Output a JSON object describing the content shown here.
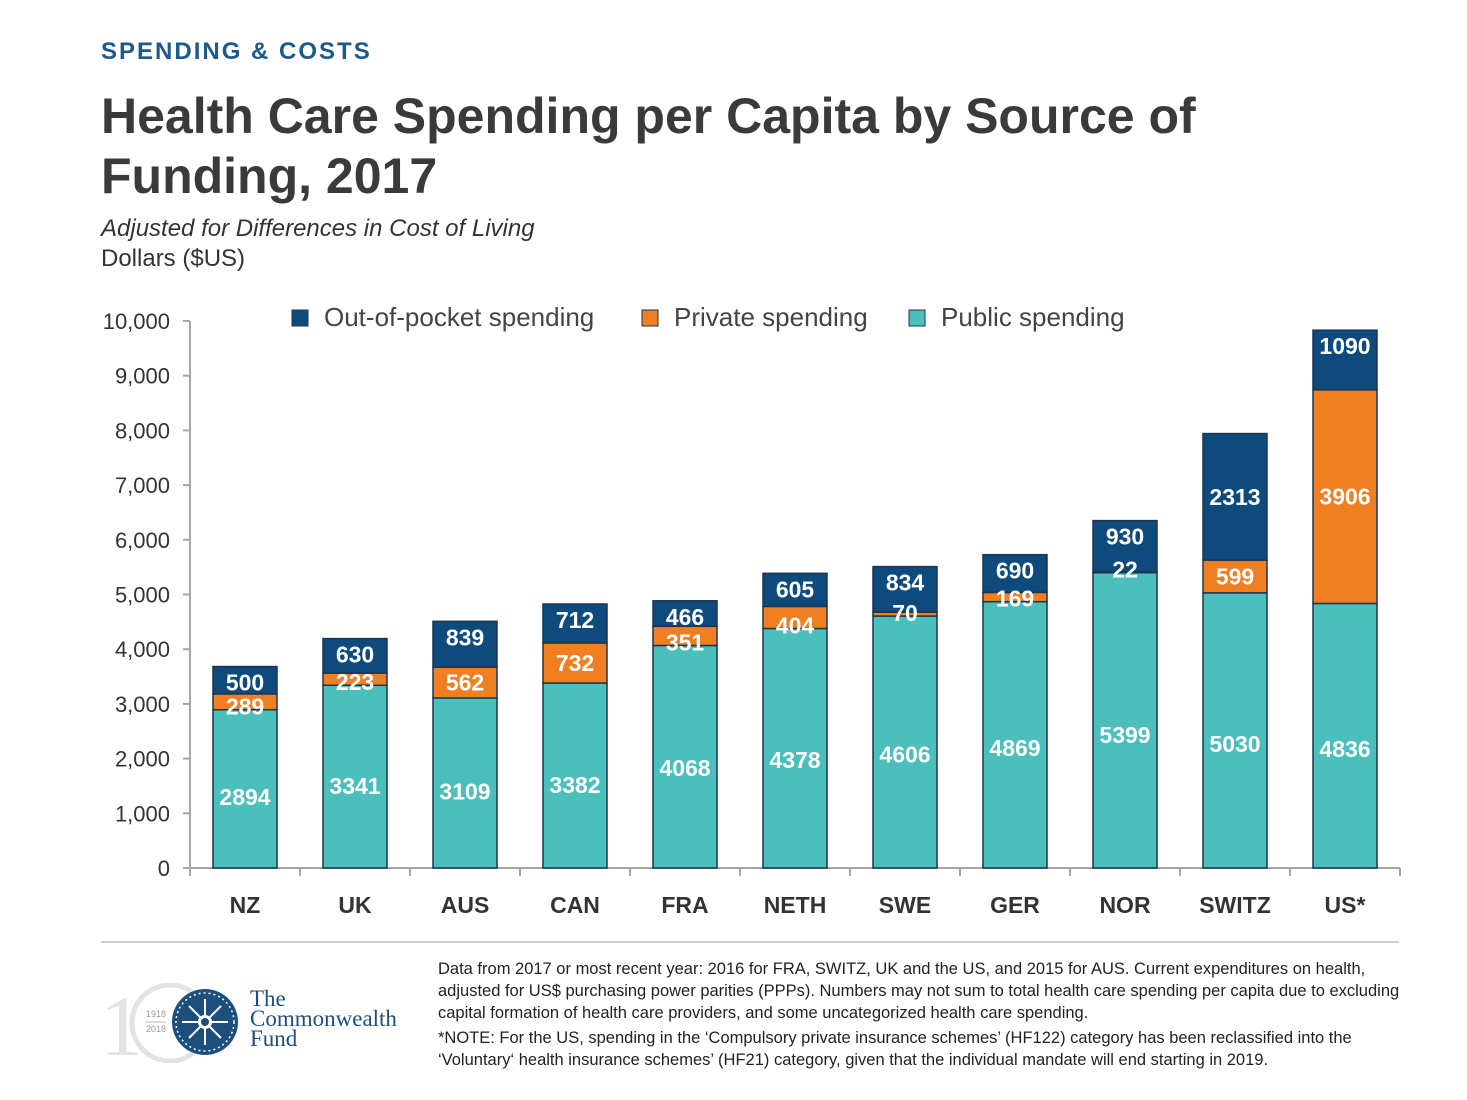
{
  "header": {
    "eyebrow": "SPENDING & COSTS",
    "title": "Health Care Spending per Capita by Source of Funding, 2017",
    "subtitle": "Adjusted for Differences in Cost of Living",
    "units": "Dollars ($US)"
  },
  "chart_data": {
    "type": "bar",
    "stacked": true,
    "categories": [
      "NZ",
      "UK",
      "AUS",
      "CAN",
      "FRA",
      "NETH",
      "SWE",
      "GER",
      "NOR",
      "SWITZ",
      "US*"
    ],
    "series": [
      {
        "name": "Public spending",
        "color": "#4bbfbb",
        "label_color": "#ffffff",
        "values": [
          2894,
          3341,
          3109,
          3382,
          4068,
          4378,
          4606,
          4869,
          5399,
          5030,
          4836
        ]
      },
      {
        "name": "Private spending",
        "color": "#f07f22",
        "label_color": "#ffffff",
        "values": [
          289,
          223,
          562,
          732,
          351,
          404,
          70,
          169,
          22,
          599,
          3906
        ]
      },
      {
        "name": "Out-of-pocket spending",
        "color": "#0e4a7c",
        "label_color": "#ffffff",
        "values": [
          500,
          630,
          839,
          712,
          466,
          605,
          834,
          690,
          930,
          2313,
          1090
        ]
      }
    ],
    "legend_order": [
      "Out-of-pocket spending",
      "Private spending",
      "Public spending"
    ],
    "legend_position": "top",
    "ylim": [
      0,
      10000
    ],
    "yticks": [
      "0",
      "1,000",
      "2,000",
      "3,000",
      "4,000",
      "5,000",
      "6,000",
      "7,000",
      "8,000",
      "9,000",
      "10,000"
    ],
    "xlabel": "",
    "ylabel": "Dollars ($US)",
    "grid": false
  },
  "footer": {
    "logo_text": [
      "The",
      "Commonwealth",
      "Fund"
    ],
    "logo_years": [
      "1918",
      "2018"
    ],
    "notes": [
      "Data from 2017 or most recent year: 2016 for FRA, SWITZ, UK and the US, and 2015 for AUS. Current expenditures on health, adjusted for US$ purchasing power parities (PPPs). Numbers may not sum to total health care spending per capita due to excluding capital formation of health care providers, and some uncategorized health care spending.",
      "*NOTE: For the US, spending in the ‘Compulsory private insurance schemes’ (HF122) category has been reclassified into the ‘Voluntary‘ health insurance schemes’ (HF21) category, given that the individual mandate will end starting in 2019."
    ]
  }
}
